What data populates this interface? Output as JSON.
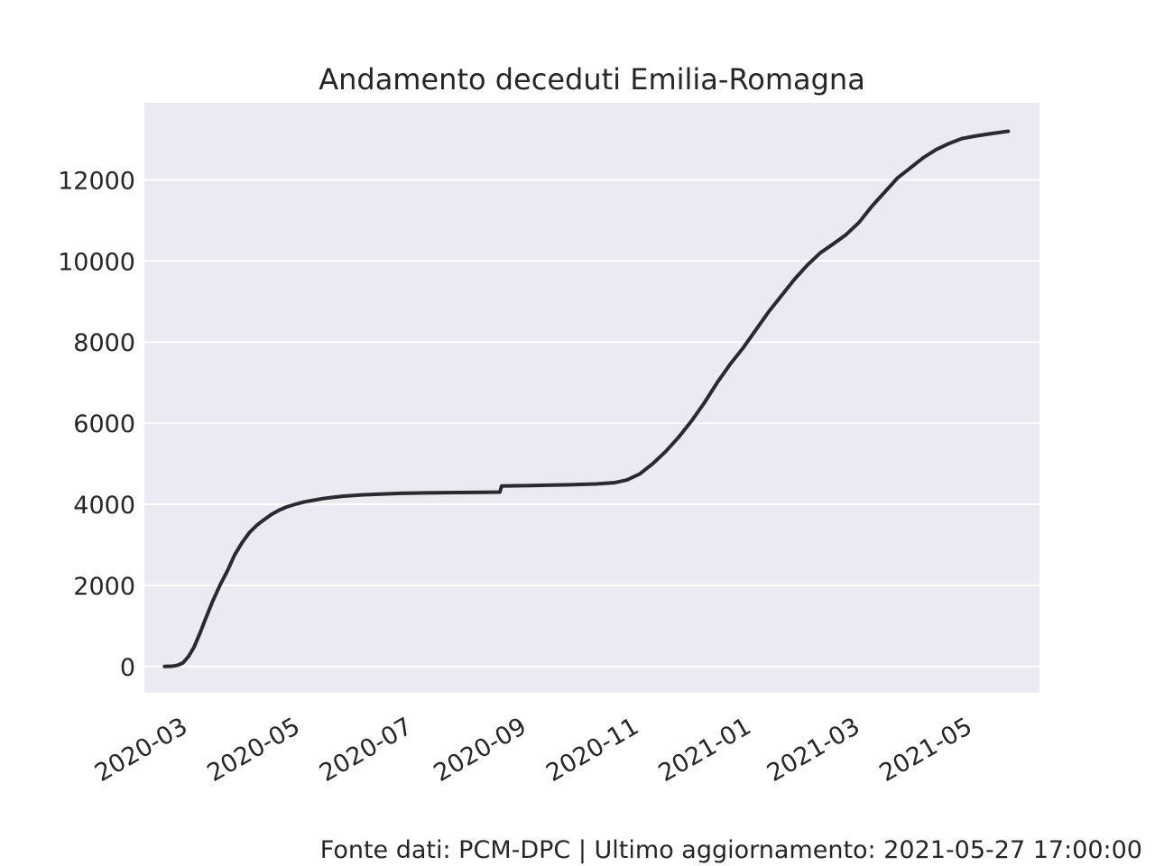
{
  "chart_data": {
    "type": "line",
    "title": "Andamento deceduti Emilia-Romagna",
    "xlabel": "",
    "ylabel": "",
    "x_type": "date",
    "xlim": [
      "2020-02-13",
      "2021-06-13"
    ],
    "ylim": [
      -650,
      13900
    ],
    "grid": true,
    "grid_axis": "y",
    "x_ticks": [
      "2020-03-01",
      "2020-05-01",
      "2020-07-01",
      "2020-09-01",
      "2020-11-01",
      "2021-01-01",
      "2021-03-01",
      "2021-05-01"
    ],
    "x_tick_labels": [
      "2020-03",
      "2020-05",
      "2020-07",
      "2020-09",
      "2020-11",
      "2021-01",
      "2021-03",
      "2021-05"
    ],
    "y_ticks": [
      0,
      2000,
      4000,
      6000,
      8000,
      10000,
      12000
    ],
    "y_tick_labels": [
      "0",
      "2000",
      "4000",
      "6000",
      "8000",
      "10000",
      "12000"
    ],
    "colors": {
      "background": "#eaeaf2",
      "grid": "#ffffff",
      "line": "#2a2a2e"
    },
    "series": [
      {
        "name": "",
        "x": [
          "2020-02-24",
          "2020-02-28",
          "2020-03-02",
          "2020-03-05",
          "2020-03-08",
          "2020-03-11",
          "2020-03-14",
          "2020-03-17",
          "2020-03-21",
          "2020-03-25",
          "2020-03-29",
          "2020-04-02",
          "2020-04-06",
          "2020-04-10",
          "2020-04-14",
          "2020-04-18",
          "2020-04-22",
          "2020-04-26",
          "2020-04-30",
          "2020-05-05",
          "2020-05-10",
          "2020-05-15",
          "2020-05-20",
          "2020-05-25",
          "2020-05-31",
          "2020-06-10",
          "2020-06-20",
          "2020-07-01",
          "2020-07-15",
          "2020-08-01",
          "2020-08-15",
          "2020-08-24",
          "2020-08-25",
          "2020-09-10",
          "2020-10-01",
          "2020-10-15",
          "2020-10-25",
          "2020-11-01",
          "2020-11-08",
          "2020-11-15",
          "2020-11-22",
          "2020-11-29",
          "2020-12-06",
          "2020-12-13",
          "2020-12-20",
          "2020-12-27",
          "2021-01-03",
          "2021-01-10",
          "2021-01-17",
          "2021-01-24",
          "2021-01-31",
          "2021-02-07",
          "2021-02-14",
          "2021-02-21",
          "2021-02-28",
          "2021-03-07",
          "2021-03-14",
          "2021-03-21",
          "2021-03-28",
          "2021-04-04",
          "2021-04-11",
          "2021-04-18",
          "2021-04-25",
          "2021-05-02",
          "2021-05-09",
          "2021-05-16",
          "2021-05-27"
        ],
        "y": [
          0,
          5,
          30,
          90,
          250,
          480,
          800,
          1150,
          1600,
          2000,
          2350,
          2750,
          3050,
          3300,
          3480,
          3620,
          3750,
          3850,
          3930,
          4000,
          4060,
          4100,
          4140,
          4170,
          4200,
          4230,
          4250,
          4270,
          4280,
          4290,
          4295,
          4300,
          4450,
          4460,
          4480,
          4500,
          4530,
          4600,
          4750,
          5000,
          5300,
          5650,
          6050,
          6500,
          7000,
          7450,
          7850,
          8300,
          8750,
          9150,
          9550,
          9900,
          10200,
          10420,
          10650,
          10950,
          11350,
          11700,
          12050,
          12300,
          12550,
          12750,
          12900,
          13020,
          13080,
          13130,
          13200
        ]
      }
    ]
  },
  "footer": {
    "source_text": "Fonte dati: PCM-DPC | Ultimo aggiornamento: 2021-05-27 17:00:00"
  }
}
